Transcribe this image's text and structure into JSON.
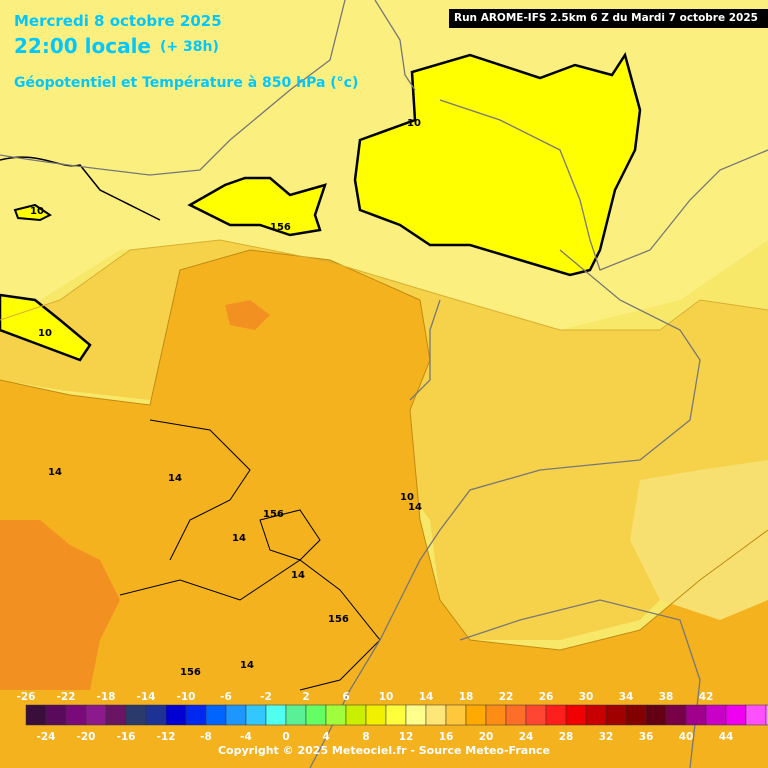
{
  "header": {
    "date": "Mercredi 8 octobre 2025",
    "time": "22:00 locale",
    "offset": "(+ 38h)",
    "subtitle": "Géopotentiel et Température à 850 hPa (°c)"
  },
  "run_info": "Run AROME-IFS 2.5km 6 Z du Mardi 7 octobre 2025",
  "contour_labels": [
    "10",
    "10",
    "10",
    "10",
    "156",
    "14",
    "14",
    "14",
    "156",
    "14",
    "14",
    "156",
    "156",
    "14"
  ],
  "legend": {
    "top_labels": [
      "-26",
      "-22",
      "-18",
      "-14",
      "-10",
      "-6",
      "-2",
      "2",
      "6",
      "10",
      "14",
      "18",
      "22",
      "26",
      "30",
      "34",
      "38",
      "42"
    ],
    "bottom_labels": [
      "-24",
      "-20",
      "-16",
      "-12",
      "-8",
      "-4",
      "0",
      "4",
      "8",
      "12",
      "16",
      "20",
      "24",
      "28",
      "32",
      "36",
      "40",
      "44"
    ],
    "colors": [
      "#3a0e3a",
      "#5a0a5a",
      "#7a0a7a",
      "#8c1a8c",
      "#6a1464",
      "#2a3a6a",
      "#1e3296",
      "#0000d2",
      "#0028f0",
      "#0064ff",
      "#1e96ff",
      "#32c8ff",
      "#50fff0",
      "#5af096",
      "#64ff64",
      "#a0ff3c",
      "#c8f000",
      "#f0f000",
      "#ffff3c",
      "#ffff8c",
      "#ffe678",
      "#ffc83c",
      "#ffaa00",
      "#ff8c14",
      "#ff6e28",
      "#ff4632",
      "#ff1e1e",
      "#f00000",
      "#c80000",
      "#a00000",
      "#820000",
      "#640014",
      "#780046",
      "#a0008c",
      "#c800c8",
      "#f000f0",
      "#ff50ff",
      "#ff8cff"
    ]
  },
  "copyright": "Copyright © 2025 Meteociel.fr - Source Meteo-France"
}
